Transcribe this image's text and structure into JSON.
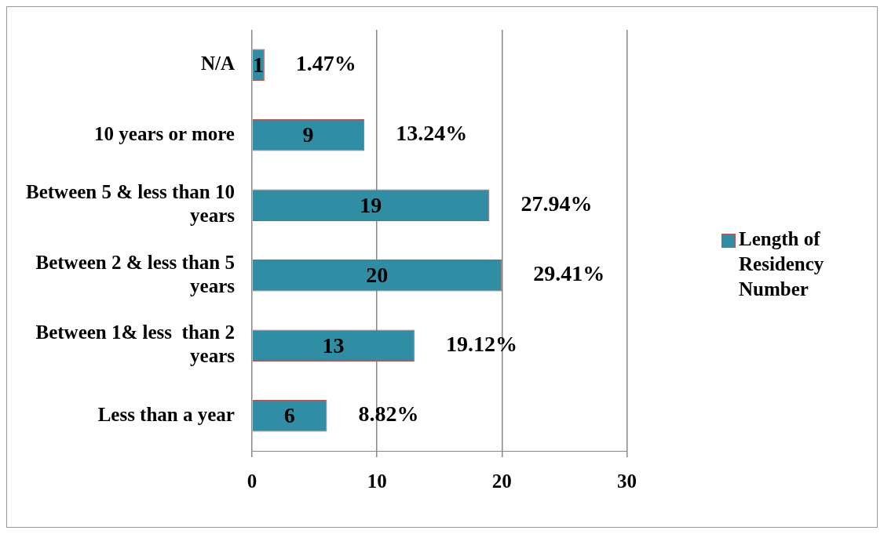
{
  "chart_data": {
    "type": "bar",
    "orientation": "horizontal",
    "categories": [
      "N/A",
      "10 years or more",
      "Between 5 & less than 10 years",
      "Between 2 & less than 5 years",
      "Between 1& less  than 2 years",
      "Less than a year"
    ],
    "series": [
      {
        "name": "Length of Residency Number",
        "color": "#2f8ea3",
        "values": [
          1,
          9,
          19,
          20,
          13,
          6
        ],
        "value_labels": [
          "1",
          "9",
          "19",
          "20",
          "13",
          "6"
        ]
      }
    ],
    "annotations": [
      {
        "text": "1.47%",
        "x": 1,
        "y": "N/A"
      },
      {
        "text": "13.24%",
        "x": 9,
        "y": "10 years or more"
      },
      {
        "text": "27.94%",
        "x": 19,
        "y": "Between 5 & less than 10 years"
      },
      {
        "text": "29.41%",
        "x": 20,
        "y": "Between 2 & less than 5 years"
      },
      {
        "text": "19.12%",
        "x": 13,
        "y": "Between 1& less  than 2 years"
      },
      {
        "text": "8.82%",
        "x": 6,
        "y": "Less than a year"
      }
    ],
    "xlim": [
      0,
      30
    ],
    "xticks": [
      0,
      10,
      20,
      30
    ],
    "grid": "x",
    "legend": "right"
  }
}
